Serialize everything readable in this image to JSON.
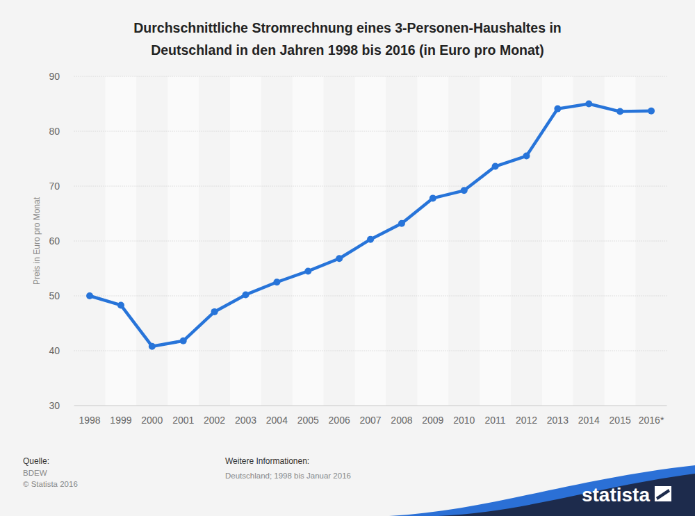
{
  "chart_data": {
    "type": "line",
    "title": "Durchschnittliche Stromrechnung eines 3-Personen-Haushaltes in Deutschland in den Jahren 1998 bis 2016 (in Euro pro Monat)",
    "y_label": "Preis in Euro pro Monat",
    "categories": [
      "1998",
      "1999",
      "2000",
      "2001",
      "2002",
      "2003",
      "2004",
      "2005",
      "2006",
      "2007",
      "2008",
      "2009",
      "2010",
      "2011",
      "2012",
      "2013",
      "2014",
      "2015",
      "2016*"
    ],
    "values": [
      50.0,
      48.3,
      40.8,
      41.8,
      47.1,
      50.2,
      52.5,
      54.5,
      56.8,
      60.3,
      63.2,
      67.8,
      69.2,
      73.6,
      75.5,
      84.1,
      85.0,
      83.6,
      83.7
    ],
    "color": "#2774d9",
    "marker": "circle",
    "ylim": [
      30,
      90
    ],
    "yticks": [
      30,
      40,
      50,
      60,
      70,
      80,
      90
    ],
    "grid": true,
    "source_label": "Quelle:",
    "source": "BDEW",
    "copyright": "© Statista 2016",
    "info_label": "Weitere Informationen:",
    "info": "Deutschland; 1998 bis Januar 2016",
    "logo": "statista"
  }
}
